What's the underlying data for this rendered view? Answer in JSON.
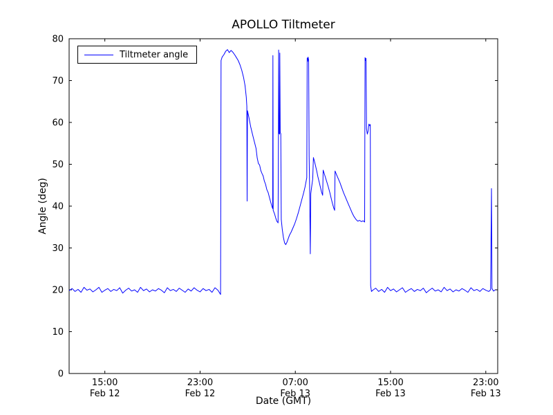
{
  "chart_data": {
    "type": "line",
    "title": "APOLLO Tiltmeter",
    "xlabel": "Date (GMT)",
    "ylabel": "Angle (deg)",
    "xlim": [
      12,
      48
    ],
    "ylim": [
      0,
      80
    ],
    "x_unit": "hours since Feb 12 00:00 GMT",
    "grid": false,
    "line_color": "#0000ff",
    "axis_color": "#000000",
    "background_color": "#ffffff",
    "legend": {
      "position": "upper left",
      "entries": [
        "Tiltmeter angle"
      ]
    },
    "y_ticks": [
      0,
      10,
      20,
      30,
      40,
      50,
      60,
      70,
      80
    ],
    "x_ticks": [
      {
        "value": 15,
        "time": "15:00",
        "date": "Feb 12"
      },
      {
        "value": 23,
        "time": "23:00",
        "date": "Feb 12"
      },
      {
        "value": 31,
        "time": "07:00",
        "date": "Feb 13"
      },
      {
        "value": 39,
        "time": "15:00",
        "date": "Feb 13"
      },
      {
        "value": 47,
        "time": "23:00",
        "date": "Feb 13"
      }
    ],
    "series": [
      {
        "name": "Tiltmeter angle",
        "points": [
          [
            12.0,
            19.8
          ],
          [
            12.25,
            20.3
          ],
          [
            12.5,
            19.6
          ],
          [
            12.75,
            20.1
          ],
          [
            13.0,
            19.4
          ],
          [
            13.25,
            20.6
          ],
          [
            13.5,
            19.9
          ],
          [
            13.75,
            20.2
          ],
          [
            14.0,
            19.5
          ],
          [
            14.25,
            20.0
          ],
          [
            14.5,
            20.6
          ],
          [
            14.75,
            19.4
          ],
          [
            15.0,
            19.9
          ],
          [
            15.25,
            20.3
          ],
          [
            15.5,
            19.6
          ],
          [
            15.75,
            20.1
          ],
          [
            16.0,
            19.8
          ],
          [
            16.25,
            20.5
          ],
          [
            16.5,
            19.2
          ],
          [
            16.75,
            19.9
          ],
          [
            17.0,
            20.4
          ],
          [
            17.25,
            19.7
          ],
          [
            17.5,
            20.0
          ],
          [
            17.75,
            19.4
          ],
          [
            18.0,
            20.6
          ],
          [
            18.25,
            19.8
          ],
          [
            18.5,
            20.2
          ],
          [
            18.75,
            19.5
          ],
          [
            19.0,
            20.0
          ],
          [
            19.25,
            19.7
          ],
          [
            19.5,
            20.3
          ],
          [
            19.75,
            19.9
          ],
          [
            20.0,
            19.3
          ],
          [
            20.25,
            20.5
          ],
          [
            20.5,
            19.8
          ],
          [
            20.75,
            20.1
          ],
          [
            21.0,
            19.6
          ],
          [
            21.25,
            20.4
          ],
          [
            21.5,
            19.9
          ],
          [
            21.75,
            19.4
          ],
          [
            22.0,
            20.2
          ],
          [
            22.25,
            19.7
          ],
          [
            22.5,
            20.5
          ],
          [
            22.75,
            19.9
          ],
          [
            23.0,
            19.5
          ],
          [
            23.25,
            20.3
          ],
          [
            23.5,
            19.8
          ],
          [
            23.75,
            20.1
          ],
          [
            24.0,
            19.4
          ],
          [
            24.25,
            20.5
          ],
          [
            24.5,
            19.9
          ],
          [
            24.65,
            19.2
          ],
          [
            24.72,
            18.9
          ],
          [
            24.76,
            74.8
          ],
          [
            24.85,
            75.6
          ],
          [
            25.0,
            76.2
          ],
          [
            25.15,
            77.0
          ],
          [
            25.3,
            77.4
          ],
          [
            25.45,
            76.7
          ],
          [
            25.6,
            77.2
          ],
          [
            25.75,
            76.8
          ],
          [
            25.9,
            76.2
          ],
          [
            26.05,
            75.5
          ],
          [
            26.2,
            74.8
          ],
          [
            26.35,
            73.8
          ],
          [
            26.5,
            72.5
          ],
          [
            26.65,
            70.8
          ],
          [
            26.78,
            68.8
          ],
          [
            26.88,
            66.0
          ],
          [
            26.93,
            63.8
          ],
          [
            26.95,
            41.2
          ],
          [
            26.98,
            62.8
          ],
          [
            27.1,
            61.2
          ],
          [
            27.25,
            59.0
          ],
          [
            27.4,
            57.2
          ],
          [
            27.55,
            55.5
          ],
          [
            27.7,
            53.8
          ],
          [
            27.8,
            51.5
          ],
          [
            27.9,
            50.2
          ],
          [
            28.0,
            49.8
          ],
          [
            28.1,
            48.5
          ],
          [
            28.2,
            47.8
          ],
          [
            28.3,
            47.2
          ],
          [
            28.4,
            46.0
          ],
          [
            28.5,
            45.2
          ],
          [
            28.6,
            44.0
          ],
          [
            28.72,
            43.2
          ],
          [
            28.85,
            41.8
          ],
          [
            28.95,
            40.8
          ],
          [
            29.05,
            39.8
          ],
          [
            29.1,
            39.4
          ],
          [
            29.12,
            76.0
          ],
          [
            29.14,
            39.0
          ],
          [
            29.25,
            38.2
          ],
          [
            29.35,
            37.2
          ],
          [
            29.45,
            36.4
          ],
          [
            29.55,
            36.0
          ],
          [
            29.58,
            57.5
          ],
          [
            29.6,
            77.3
          ],
          [
            29.63,
            57.4
          ],
          [
            29.68,
            57.2
          ],
          [
            29.7,
            76.6
          ],
          [
            29.73,
            57.6
          ],
          [
            29.78,
            57.3
          ],
          [
            29.82,
            36.8
          ],
          [
            29.9,
            34.5
          ],
          [
            30.0,
            32.5
          ],
          [
            30.1,
            31.2
          ],
          [
            30.2,
            30.8
          ],
          [
            30.3,
            31.4
          ],
          [
            30.4,
            32.2
          ],
          [
            30.5,
            33.0
          ],
          [
            30.65,
            33.8
          ],
          [
            30.8,
            34.8
          ],
          [
            30.95,
            35.8
          ],
          [
            31.1,
            37.0
          ],
          [
            31.25,
            38.4
          ],
          [
            31.4,
            40.0
          ],
          [
            31.55,
            41.6
          ],
          [
            31.7,
            43.2
          ],
          [
            31.82,
            44.6
          ],
          [
            31.9,
            45.8
          ],
          [
            31.96,
            46.8
          ],
          [
            32.0,
            75.4
          ],
          [
            32.04,
            74.6
          ],
          [
            32.08,
            75.6
          ],
          [
            32.12,
            74.9
          ],
          [
            32.16,
            52.0
          ],
          [
            32.2,
            44.5
          ],
          [
            32.26,
            28.6
          ],
          [
            32.3,
            43.0
          ],
          [
            32.38,
            44.8
          ],
          [
            32.46,
            46.5
          ],
          [
            32.52,
            51.6
          ],
          [
            32.6,
            50.8
          ],
          [
            32.7,
            49.6
          ],
          [
            32.8,
            48.4
          ],
          [
            32.9,
            47.0
          ],
          [
            33.0,
            45.8
          ],
          [
            33.1,
            44.6
          ],
          [
            33.2,
            43.4
          ],
          [
            33.3,
            42.6
          ],
          [
            33.34,
            48.6
          ],
          [
            33.45,
            47.6
          ],
          [
            33.6,
            46.2
          ],
          [
            33.75,
            44.8
          ],
          [
            33.9,
            43.2
          ],
          [
            34.02,
            41.8
          ],
          [
            34.12,
            40.6
          ],
          [
            34.22,
            39.6
          ],
          [
            34.3,
            39.0
          ],
          [
            34.34,
            48.4
          ],
          [
            34.45,
            47.6
          ],
          [
            34.6,
            46.6
          ],
          [
            34.75,
            45.6
          ],
          [
            34.9,
            44.4
          ],
          [
            35.05,
            43.2
          ],
          [
            35.2,
            42.2
          ],
          [
            35.35,
            41.2
          ],
          [
            35.5,
            40.2
          ],
          [
            35.65,
            39.2
          ],
          [
            35.8,
            38.2
          ],
          [
            35.95,
            37.4
          ],
          [
            36.1,
            36.8
          ],
          [
            36.25,
            36.4
          ],
          [
            36.4,
            36.6
          ],
          [
            36.55,
            36.3
          ],
          [
            36.7,
            36.5
          ],
          [
            36.82,
            36.2
          ],
          [
            36.86,
            75.5
          ],
          [
            36.9,
            74.8
          ],
          [
            36.94,
            75.3
          ],
          [
            36.98,
            58.5
          ],
          [
            37.05,
            57.2
          ],
          [
            37.12,
            58.0
          ],
          [
            37.18,
            59.6
          ],
          [
            37.25,
            59.2
          ],
          [
            37.3,
            59.5
          ],
          [
            37.33,
            21.0
          ],
          [
            37.4,
            19.6
          ],
          [
            37.5,
            19.9
          ],
          [
            37.75,
            20.4
          ],
          [
            38.0,
            19.6
          ],
          [
            38.25,
            20.1
          ],
          [
            38.5,
            19.4
          ],
          [
            38.75,
            20.6
          ],
          [
            39.0,
            19.8
          ],
          [
            39.25,
            20.2
          ],
          [
            39.5,
            19.5
          ],
          [
            39.75,
            20.0
          ],
          [
            40.0,
            20.5
          ],
          [
            40.25,
            19.4
          ],
          [
            40.5,
            19.9
          ],
          [
            40.75,
            20.3
          ],
          [
            41.0,
            19.6
          ],
          [
            41.25,
            20.1
          ],
          [
            41.5,
            19.8
          ],
          [
            41.75,
            20.4
          ],
          [
            42.0,
            19.3
          ],
          [
            42.25,
            19.9
          ],
          [
            42.5,
            20.4
          ],
          [
            42.75,
            19.7
          ],
          [
            43.0,
            20.0
          ],
          [
            43.25,
            19.5
          ],
          [
            43.5,
            20.6
          ],
          [
            43.75,
            19.8
          ],
          [
            44.0,
            20.2
          ],
          [
            44.25,
            19.5
          ],
          [
            44.5,
            20.0
          ],
          [
            44.75,
            19.7
          ],
          [
            45.0,
            20.3
          ],
          [
            45.25,
            19.9
          ],
          [
            45.5,
            19.4
          ],
          [
            45.75,
            20.5
          ],
          [
            46.0,
            19.8
          ],
          [
            46.25,
            20.1
          ],
          [
            46.5,
            19.6
          ],
          [
            46.75,
            20.3
          ],
          [
            47.0,
            19.9
          ],
          [
            47.25,
            19.6
          ],
          [
            47.4,
            20.0
          ],
          [
            47.48,
            44.2
          ],
          [
            47.52,
            20.3
          ],
          [
            47.65,
            19.7
          ],
          [
            47.8,
            20.0
          ]
        ]
      }
    ]
  }
}
